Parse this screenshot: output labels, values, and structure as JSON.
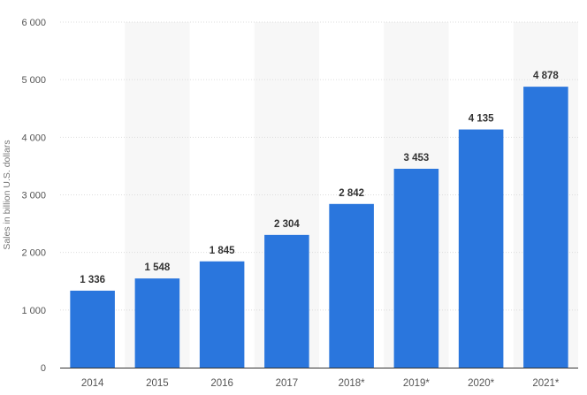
{
  "chart_data": {
    "type": "bar",
    "categories": [
      "2014",
      "2015",
      "2016",
      "2017",
      "2018*",
      "2019*",
      "2020*",
      "2021*"
    ],
    "values": [
      1336,
      1548,
      1845,
      2304,
      2842,
      3453,
      4135,
      4878
    ],
    "value_labels": [
      "1 336",
      "1 548",
      "1 845",
      "2 304",
      "2 842",
      "3 453",
      "4 135",
      "4 878"
    ],
    "title": "",
    "xlabel": "",
    "ylabel": "Sales in billion U.S. dollars",
    "ylim": [
      0,
      6000
    ],
    "yticks": [
      0,
      1000,
      2000,
      3000,
      4000,
      5000,
      6000
    ],
    "ytick_labels": [
      "0",
      "1 000",
      "2 000",
      "3 000",
      "4 000",
      "5 000",
      "6 000"
    ],
    "grid": true,
    "legend": "none",
    "colors": {
      "bar": "#2a76dd",
      "band": "#f7f7f7",
      "grid": "#dddddd",
      "axis": "#333333"
    }
  }
}
